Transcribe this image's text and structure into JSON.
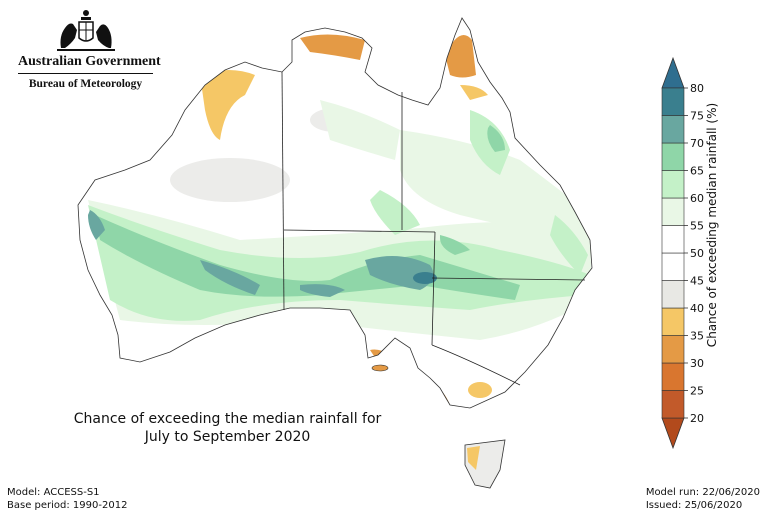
{
  "header": {
    "org": "Australian Government",
    "bureau": "Bureau of Meteorology"
  },
  "map": {
    "title_line1": "Chance of exceeding the median rainfall for",
    "title_line2": "July to September 2020"
  },
  "footer": {
    "model": "Model: ACCESS-S1",
    "base_period": "Base period: 1990-2012",
    "model_run": "Model run: 22/06/2020",
    "issued": "Issued: 25/06/2020"
  },
  "legend": {
    "label": "Chance of exceeding median rainfall (%)",
    "ticks": [
      20,
      25,
      30,
      35,
      40,
      45,
      50,
      55,
      60,
      65,
      70,
      75,
      80
    ],
    "colors": [
      "#c25a2a",
      "#d9762f",
      "#e49a45",
      "#f5c766",
      "#e8e8e4",
      "#ffffff",
      "#ffffff",
      "#e9f7e6",
      "#c4f1c8",
      "#8fd6a8",
      "#69a7a0",
      "#3a7f8e"
    ],
    "under_color": "#b24a1c",
    "over_color": "#2f6e8f"
  }
}
